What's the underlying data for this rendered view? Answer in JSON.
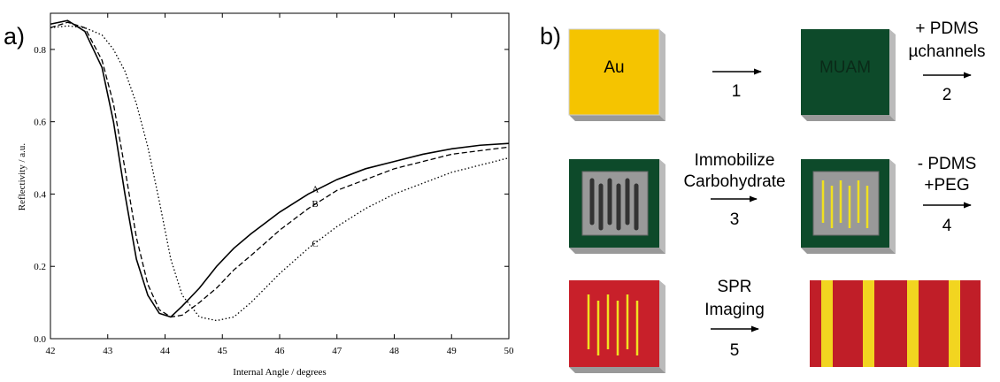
{
  "chart_data": {
    "type": "line",
    "panel": "a)",
    "xlabel": "Internal Angle / degrees",
    "ylabel": "Reflectivity / a.u.",
    "x": [
      42,
      42.3,
      42.6,
      42.9,
      43.1,
      43.3,
      43.5,
      43.7,
      43.9,
      44.1,
      44.3,
      44.6,
      44.9,
      45.2,
      45.5,
      46,
      46.5,
      47,
      47.5,
      48,
      48.5,
      49,
      49.5,
      50
    ],
    "series": [
      {
        "name": "A",
        "color": "#000000",
        "style": "solid",
        "values": [
          0.87,
          0.88,
          0.85,
          0.75,
          0.6,
          0.4,
          0.22,
          0.12,
          0.07,
          0.06,
          0.09,
          0.14,
          0.2,
          0.25,
          0.29,
          0.35,
          0.4,
          0.44,
          0.47,
          0.49,
          0.51,
          0.525,
          0.535,
          0.54
        ]
      },
      {
        "name": "B",
        "color": "#000000",
        "style": "dashed",
        "values": [
          0.86,
          0.875,
          0.86,
          0.77,
          0.65,
          0.47,
          0.28,
          0.15,
          0.08,
          0.06,
          0.065,
          0.1,
          0.14,
          0.19,
          0.23,
          0.3,
          0.36,
          0.41,
          0.44,
          0.47,
          0.49,
          0.51,
          0.52,
          0.53
        ]
      },
      {
        "name": "C",
        "color": "#000000",
        "style": "dotted",
        "values": [
          0.86,
          0.865,
          0.86,
          0.84,
          0.8,
          0.74,
          0.65,
          0.53,
          0.38,
          0.22,
          0.12,
          0.06,
          0.05,
          0.06,
          0.1,
          0.18,
          0.25,
          0.31,
          0.36,
          0.4,
          0.43,
          0.46,
          0.48,
          0.5
        ]
      }
    ],
    "xlim": [
      42,
      50
    ],
    "xticks": [
      42,
      43,
      44,
      45,
      46,
      47,
      48,
      49,
      50
    ],
    "ylim": [
      0,
      0.9
    ],
    "yticks": [
      {
        "value": 0,
        "label": "0.0"
      },
      0.2,
      0.4,
      0.6,
      0.8
    ]
  },
  "panel_b": {
    "label": "b)",
    "tiles": [
      "Au",
      "MUAM"
    ],
    "steps": [
      {
        "number": "1"
      },
      {
        "text": [
          "+ PDMS",
          "µchannels"
        ],
        "number": "2"
      },
      {
        "text": [
          "Immobilize",
          "Carbohydrate"
        ],
        "number": "3"
      },
      {
        "text": [
          "- PDMS",
          "+PEG"
        ],
        "number": "4"
      },
      {
        "text": [
          "SPR",
          "Imaging"
        ],
        "number": "5"
      }
    ]
  }
}
